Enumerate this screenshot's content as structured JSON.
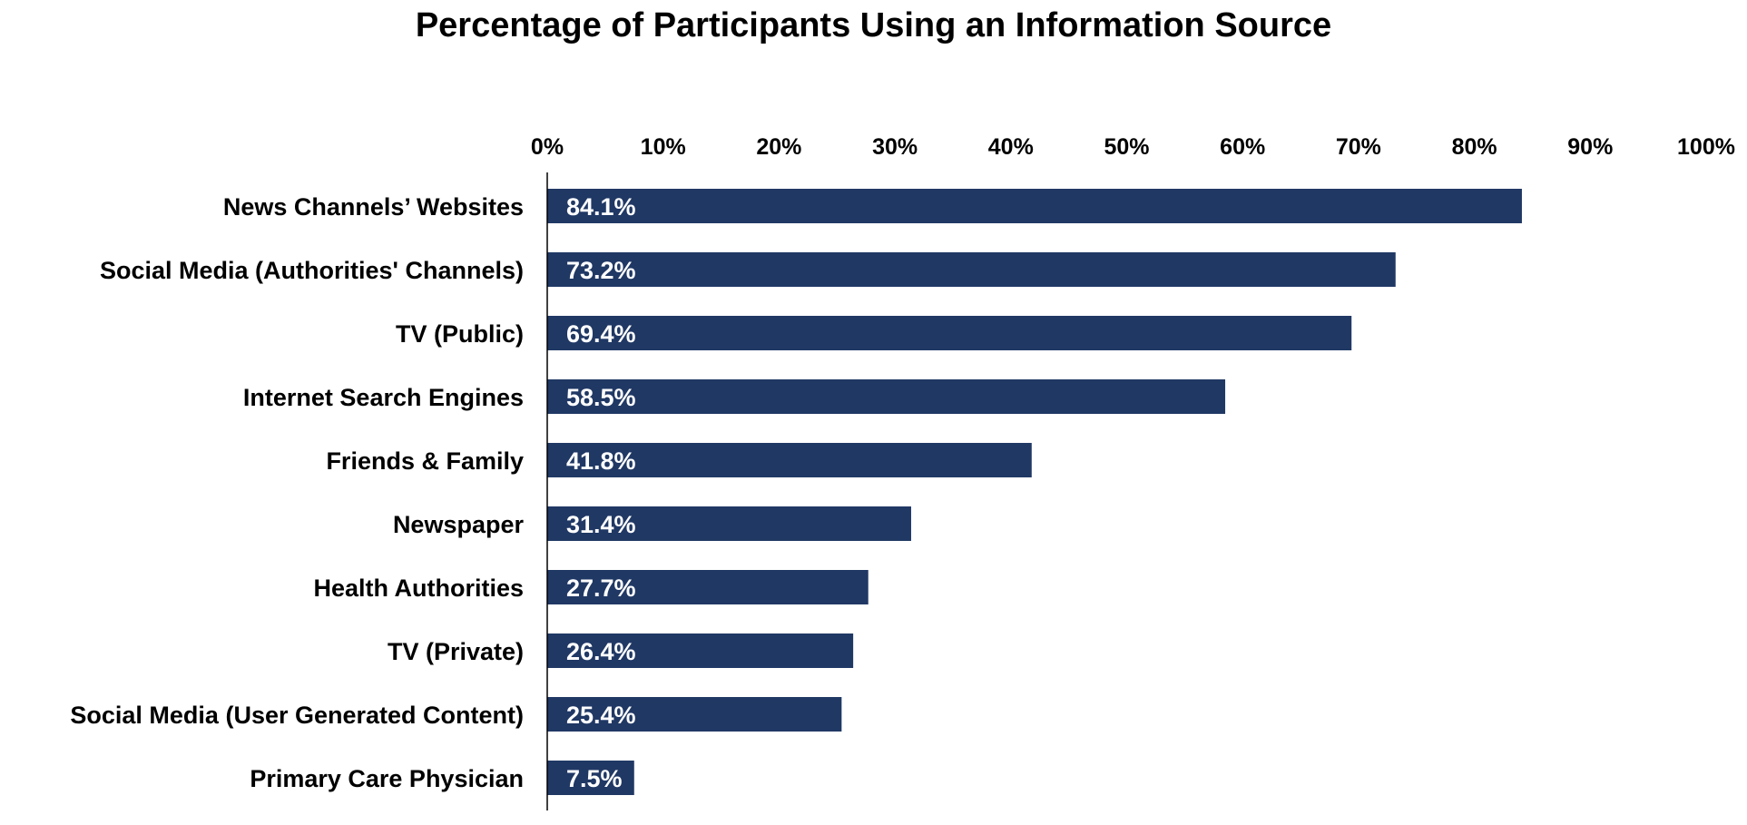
{
  "chart_data": {
    "type": "bar",
    "orientation": "horizontal",
    "title": "Percentage of Participants Using an Information Source",
    "xlabel": "",
    "ylabel": "",
    "xlim": [
      0,
      100
    ],
    "tick_values": [
      0,
      10,
      20,
      30,
      40,
      50,
      60,
      70,
      80,
      90,
      100
    ],
    "tick_labels": [
      "0%",
      "10%",
      "20%",
      "30%",
      "40%",
      "50%",
      "60%",
      "70%",
      "80%",
      "90%",
      "100%"
    ],
    "x_axis_position": "top",
    "grid": false,
    "legend": "none",
    "categories": [
      "News Channels’ Websites",
      "Social Media (Authorities' Channels)",
      "TV (Public)",
      "Internet Search Engines",
      "Friends & Family",
      "Newspaper",
      "Health Authorities",
      "TV (Private)",
      "Social Media (User Generated Content)",
      "Primary Care Physician"
    ],
    "values": [
      84.1,
      73.2,
      69.4,
      58.5,
      41.8,
      31.4,
      27.7,
      26.4,
      25.4,
      7.5
    ],
    "data_labels": [
      "84.1%",
      "73.2%",
      "69.4%",
      "58.5%",
      "41.8%",
      "31.4%",
      "27.7%",
      "26.4%",
      "25.4%",
      "7.5%"
    ],
    "colors": {
      "bar": "#203864",
      "data_label": "#ffffff",
      "axis": "#000000"
    }
  }
}
